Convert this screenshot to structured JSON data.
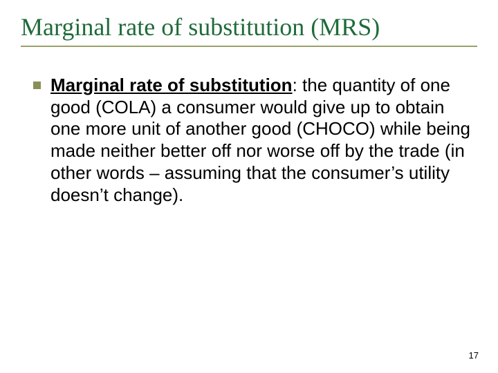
{
  "title": {
    "text": "Marginal rate of substitution (MRS)",
    "color": "#1f6b3a",
    "fontsize": 36,
    "underline_color": "#9aa06a"
  },
  "bullet": {
    "color": "#8a8f5a"
  },
  "body": {
    "term": "Marginal rate of substitution",
    "rest": ": the quantity of one good (COLA) a consumer would give up to obtain one more unit of another good (CHOCO) while being made neither better off nor worse off by the trade (in other words – assuming that the consumer’s utility doesn’t change).",
    "color": "#000000",
    "fontsize": 26
  },
  "page_number": {
    "value": "17",
    "color": "#000000",
    "fontsize": 13
  },
  "background_color": "#ffffff"
}
